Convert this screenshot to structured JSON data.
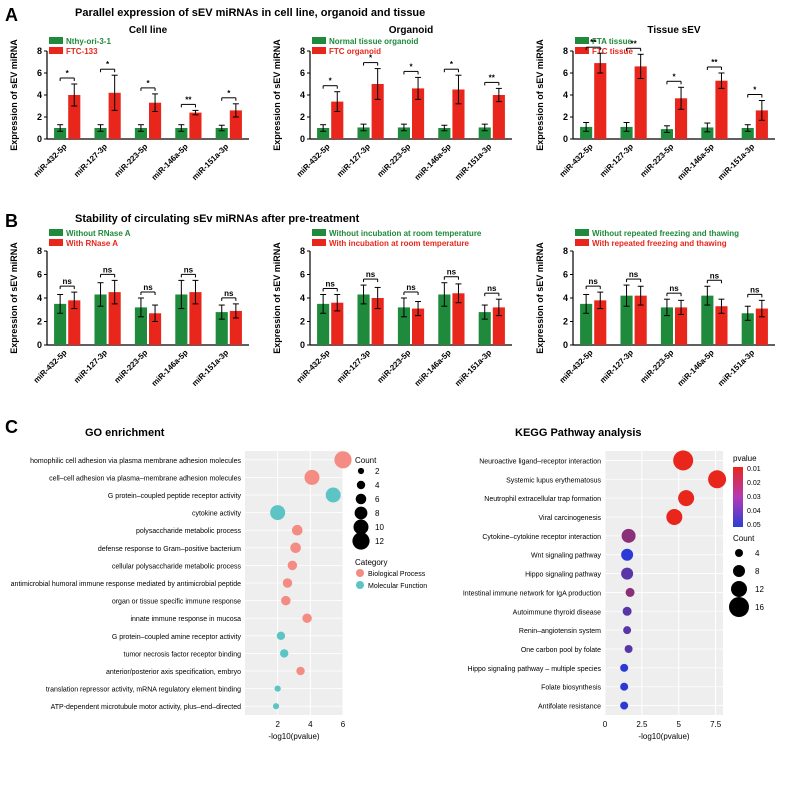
{
  "colors": {
    "green": "#1f8a3b",
    "red": "#e8261c",
    "black": "#000000",
    "pink": "#f48c84",
    "cyan": "#5cc4c4",
    "blue": "#2b3fd6",
    "magenta": "#b43ab4"
  },
  "panelA": {
    "label": "A",
    "title": "Parallel expression of sEV miRNAs in cell line, organoid and tissue",
    "ylabel": "Expression of sEV miRNA",
    "ymax": 8,
    "yticks": [
      0,
      2,
      4,
      6,
      8
    ],
    "categories": [
      "miR-432-5p",
      "miR-127-3p",
      "miR-223-5p",
      "miR-146a-5p",
      "miR-151a-3p"
    ],
    "sub": [
      {
        "title": "Cell line",
        "legend": [
          "Nthy-ori-3-1",
          "FTC-133"
        ],
        "green": [
          1.0,
          1.0,
          1.0,
          1.0,
          1.0
        ],
        "red": [
          4.0,
          4.2,
          3.3,
          2.4,
          2.6
        ],
        "gErr": [
          0.3,
          0.3,
          0.3,
          0.3,
          0.25
        ],
        "rErr": [
          1.0,
          1.6,
          0.8,
          0.2,
          0.6
        ],
        "sig": [
          "*",
          "*",
          "*",
          "**",
          "*"
        ]
      },
      {
        "title": "Organoid",
        "legend": [
          "Normal tissue organoid",
          "FTC organoid"
        ],
        "green": [
          1.0,
          1.05,
          1.05,
          1.0,
          1.05
        ],
        "red": [
          3.4,
          5.0,
          4.6,
          4.5,
          4.0
        ],
        "gErr": [
          0.3,
          0.3,
          0.3,
          0.25,
          0.3
        ],
        "rErr": [
          0.9,
          1.4,
          1.0,
          1.3,
          0.6
        ],
        "sig": [
          "*",
          "*",
          "*",
          "*",
          "**"
        ]
      },
      {
        "title": "Tissue sEV",
        "legend": [
          "FTA tissue",
          "FTC tissue"
        ],
        "green": [
          1.1,
          1.1,
          0.9,
          1.05,
          1.0
        ],
        "red": [
          6.9,
          6.6,
          3.7,
          5.3,
          2.6
        ],
        "gErr": [
          0.4,
          0.4,
          0.3,
          0.4,
          0.3
        ],
        "rErr": [
          0.9,
          1.1,
          1.0,
          0.7,
          0.9
        ],
        "sig": [
          "**",
          "**",
          "*",
          "**",
          "*"
        ]
      }
    ]
  },
  "panelB": {
    "label": "B",
    "title": "Stability of circulating sEv miRNAs after pre-treatment",
    "ylabel": "Expression of sEV miRNA",
    "ymax": 8,
    "yticks": [
      0,
      2,
      4,
      6,
      8
    ],
    "categories": [
      "miR-432-5p",
      "miR-127-3p",
      "miR-223-5p",
      "miR-146a-5p",
      "miR-151a-3p"
    ],
    "sub": [
      {
        "legend": [
          "Without RNase A",
          "With RNase A"
        ],
        "green": [
          3.5,
          4.3,
          3.2,
          4.3,
          2.8
        ],
        "red": [
          3.8,
          4.5,
          2.7,
          4.5,
          2.9
        ],
        "gErr": [
          0.8,
          1.0,
          0.8,
          1.2,
          0.6
        ],
        "rErr": [
          0.7,
          1.0,
          0.7,
          1.0,
          0.6
        ],
        "sig": [
          "ns",
          "ns",
          "ns",
          "ns",
          "ns"
        ]
      },
      {
        "legend": [
          "Without incubation at room temperature",
          "With incubation at room temperature"
        ],
        "green": [
          3.5,
          4.3,
          3.2,
          4.3,
          2.8
        ],
        "red": [
          3.6,
          4.0,
          3.1,
          4.4,
          3.2
        ],
        "gErr": [
          0.8,
          0.8,
          0.8,
          1.0,
          0.6
        ],
        "rErr": [
          0.7,
          0.9,
          0.6,
          0.8,
          0.7
        ],
        "sig": [
          "ns",
          "ns",
          "ns",
          "ns",
          "ns"
        ]
      },
      {
        "legend": [
          "Without repeated freezing and thawing",
          "With repeated freezing and thawing"
        ],
        "green": [
          3.5,
          4.2,
          3.2,
          4.2,
          2.7
        ],
        "red": [
          3.8,
          4.2,
          3.2,
          3.3,
          3.1
        ],
        "gErr": [
          0.8,
          0.9,
          0.7,
          0.8,
          0.6
        ],
        "rErr": [
          0.7,
          0.8,
          0.6,
          0.6,
          0.7
        ],
        "sig": [
          "ns",
          "ns",
          "ns",
          "ns",
          "ns"
        ]
      }
    ]
  },
  "panelC": {
    "label": "C",
    "go": {
      "title": "GO enrichment",
      "xlabel": "-log10(pvalue)",
      "xmax": 6,
      "xticks": [
        2,
        4,
        6
      ],
      "countScale": [
        2,
        4,
        6,
        8,
        10,
        12
      ],
      "catLegend": [
        "Biological Process",
        "Molecular Function"
      ],
      "items": [
        {
          "label": "homophilic cell adhesion via plasma membrane adhesion molecules",
          "x": 6.0,
          "cnt": 12,
          "cat": "bp"
        },
        {
          "label": "cell–cell adhesion via plasma–membrane adhesion molecules",
          "x": 4.1,
          "cnt": 10,
          "cat": "bp"
        },
        {
          "label": "G protein–coupled peptide receptor activity",
          "x": 5.4,
          "cnt": 10,
          "cat": "mf"
        },
        {
          "label": "cytokine activity",
          "x": 2.0,
          "cnt": 10,
          "cat": "mf"
        },
        {
          "label": "polysaccharide metabolic process",
          "x": 3.2,
          "cnt": 6,
          "cat": "bp"
        },
        {
          "label": "defense response to Gram–positive bacterium",
          "x": 3.1,
          "cnt": 6,
          "cat": "bp"
        },
        {
          "label": "cellular polysaccharide metabolic process",
          "x": 2.9,
          "cnt": 5,
          "cat": "bp"
        },
        {
          "label": "antimicrobial humoral immune response mediated by antimicrobial peptide",
          "x": 2.6,
          "cnt": 5,
          "cat": "bp"
        },
        {
          "label": "organ or tissue specific immune response",
          "x": 2.5,
          "cnt": 5,
          "cat": "bp"
        },
        {
          "label": "innate immune response in mucosa",
          "x": 3.8,
          "cnt": 5,
          "cat": "bp"
        },
        {
          "label": "G protein–coupled amine receptor activity",
          "x": 2.2,
          "cnt": 4,
          "cat": "mf"
        },
        {
          "label": "tumor necrosis factor receptor binding",
          "x": 2.4,
          "cnt": 4,
          "cat": "mf"
        },
        {
          "label": "anterior/posterior axis specification, embryo",
          "x": 3.4,
          "cnt": 4,
          "cat": "bp"
        },
        {
          "label": "translation repressor activity, mRNA regulatory element binding",
          "x": 2.0,
          "cnt": 2,
          "cat": "mf"
        },
        {
          "label": "ATP-dependent microtubule motor activity, plus–end–directed",
          "x": 1.9,
          "cnt": 2,
          "cat": "mf"
        }
      ]
    },
    "kegg": {
      "title": "KEGG Pathway analysis",
      "xlabel": "-log10(pvalue)",
      "xmax": 8,
      "xticks": [
        0,
        2.5,
        5.0,
        7.5
      ],
      "pvalScale": [
        0.01,
        0.02,
        0.03,
        0.04,
        0.05
      ],
      "countScale": [
        4,
        8,
        12,
        16
      ],
      "items": [
        {
          "label": "Neuroactive ligand–receptor interaction",
          "x": 5.3,
          "cnt": 16,
          "p": 0.01
        },
        {
          "label": "Systemic lupus erythematosus",
          "x": 7.6,
          "cnt": 14,
          "p": 0.01
        },
        {
          "label": "Neutrophil extracellular trap formation",
          "x": 5.5,
          "cnt": 12,
          "p": 0.01
        },
        {
          "label": "Viral carcinogenesis",
          "x": 4.7,
          "cnt": 12,
          "p": 0.01
        },
        {
          "label": "Cytokine–cytokine receptor interaction",
          "x": 1.6,
          "cnt": 10,
          "p": 0.03
        },
        {
          "label": "Wnt signaling pathway",
          "x": 1.5,
          "cnt": 8,
          "p": 0.05
        },
        {
          "label": "Hippo signaling pathway",
          "x": 1.5,
          "cnt": 8,
          "p": 0.04
        },
        {
          "label": "Intestinal immune network for IgA production",
          "x": 1.7,
          "cnt": 5,
          "p": 0.03
        },
        {
          "label": "Autoimmune thyroid disease",
          "x": 1.5,
          "cnt": 5,
          "p": 0.04
        },
        {
          "label": "Renin–angiotensin system",
          "x": 1.5,
          "cnt": 4,
          "p": 0.04
        },
        {
          "label": "One carbon pool by folate",
          "x": 1.6,
          "cnt": 4,
          "p": 0.04
        },
        {
          "label": "Hippo signaling pathway – multiple species",
          "x": 1.3,
          "cnt": 4,
          "p": 0.05
        },
        {
          "label": "Folate biosynthesis",
          "x": 1.3,
          "cnt": 4,
          "p": 0.05
        },
        {
          "label": "Antifolate resistance",
          "x": 1.3,
          "cnt": 4,
          "p": 0.05
        }
      ]
    }
  }
}
